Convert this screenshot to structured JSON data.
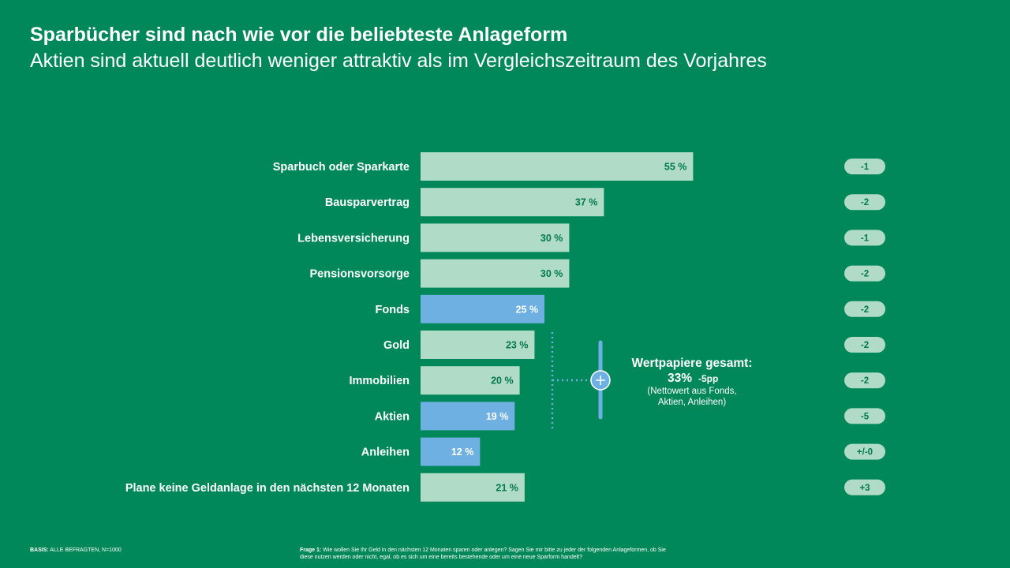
{
  "header": {
    "title": "Sparbücher sind nach wie vor die beliebteste Anlageform",
    "subtitle": "Aktien sind aktuell deutlich weniger attraktiv als im Vergleichszeitraum des Vorjahres"
  },
  "chart_data": {
    "type": "bar",
    "orientation": "horizontal",
    "categories": [
      "Sparbuch oder Sparkarte",
      "Bausparvertrag",
      "Lebensversicherung",
      "Pensionsvorsorge",
      "Fonds",
      "Gold",
      "Immobilien",
      "Aktien",
      "Anleihen",
      "Plane keine Geldanlage in den nächsten 12 Monaten"
    ],
    "values": [
      55,
      37,
      30,
      30,
      25,
      23,
      20,
      19,
      12,
      21
    ],
    "value_labels": [
      "55 %",
      "37 %",
      "30 %",
      "30 %",
      "25 %",
      "23 %",
      "20 %",
      "19 %",
      "12 %",
      "21 %"
    ],
    "changes": [
      "-1",
      "-2",
      "-1",
      "-2",
      "-2",
      "-2",
      "-2",
      "-5",
      "+/-0",
      "+3"
    ],
    "highlighted": [
      false,
      false,
      false,
      false,
      true,
      false,
      false,
      true,
      true,
      false
    ],
    "colors": {
      "background": "#00875a",
      "bar": "#b0dbc6",
      "bar_highlight": "#6fb0e2",
      "label_on_bar": "#00794f",
      "label_on_highlight": "#ffffff",
      "pill": "#b0dbc6",
      "pill_text": "#00794f",
      "connector": "#6fb0e2"
    },
    "annotation": {
      "title": "Wertpapiere gesamt:",
      "value": "33%",
      "change": "-5pp",
      "note_line1": "(Nettowert aus Fonds,",
      "note_line2": "Aktien, Anleihen)",
      "icon": "plus-icon"
    }
  },
  "footer": {
    "basis_label": "BASIS:",
    "basis_text": " ALLE BEFRAGTEN, N=1000",
    "question_label": "Frage 1:",
    "question_text": " Wie wollen Sie Ihr Geld in den nächsten 12 Monaten sparen oder anlegen? Sagen Sie mir bitte zu jeder der folgenden Anlageformen, ob Sie diese nutzen werden oder nicht, egal, ob es sich um eine bereits bestehende oder um eine neue Sparform handelt?"
  }
}
